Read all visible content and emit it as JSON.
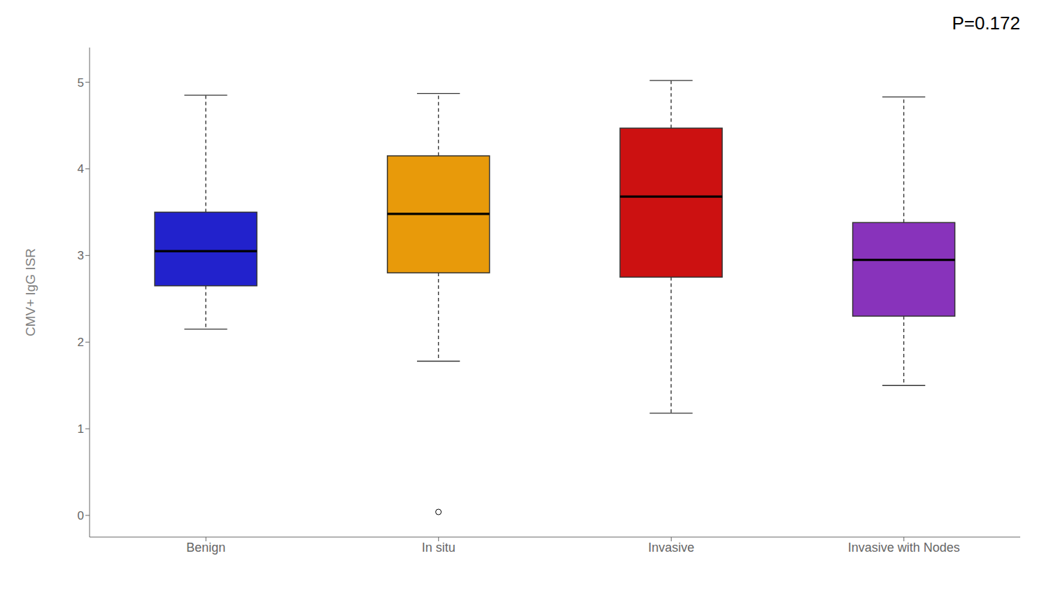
{
  "chart_data": {
    "type": "box",
    "categories": [
      "Benign",
      "In situ",
      "Invasive",
      "Invasive with Nodes"
    ],
    "colors": [
      "#2222CC",
      "#E89A0A",
      "#CC1111",
      "#8833BB"
    ],
    "boxes": [
      {
        "q1": 2.65,
        "median": 3.05,
        "q3": 3.5,
        "whisker_low": 2.15,
        "whisker_high": 4.85,
        "outliers": []
      },
      {
        "q1": 2.8,
        "median": 3.48,
        "q3": 4.15,
        "whisker_low": 1.78,
        "whisker_high": 4.87,
        "outliers": [
          0.04
        ]
      },
      {
        "q1": 2.75,
        "median": 3.68,
        "q3": 4.47,
        "whisker_low": 1.18,
        "whisker_high": 5.02,
        "outliers": []
      },
      {
        "q1": 2.3,
        "median": 2.95,
        "q3": 3.38,
        "whisker_low": 1.5,
        "whisker_high": 4.83,
        "outliers": []
      }
    ],
    "ylabel": "CMV+ IgG ISR",
    "ylim": [
      -0.25,
      5.4
    ],
    "yticks": [
      0,
      1,
      2,
      3,
      4,
      5
    ],
    "annotation": "P=0.172",
    "grid": false
  }
}
